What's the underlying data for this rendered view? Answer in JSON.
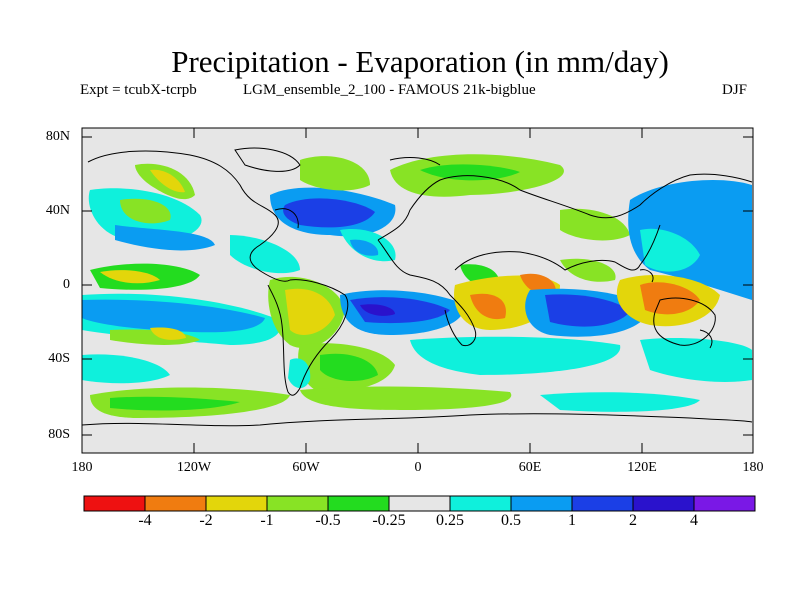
{
  "title": "Precipitation - Evaporation (in mm/day)",
  "experiment": "Expt = tcubX-tcrpb",
  "ensemble": "LGM_ensemble_2_100 - FAMOUS 21k-bigblue",
  "season": "DJF",
  "lat_ticks": [
    "80N",
    "40N",
    "0",
    "40S",
    "80S"
  ],
  "lon_ticks": [
    "180",
    "120W",
    "60W",
    "0",
    "60E",
    "120E",
    "180"
  ],
  "colorbar": {
    "colors": [
      "#ee1111",
      "#f07c10",
      "#e3d60b",
      "#88e325",
      "#23dc1f",
      "#e6e6e6",
      "#0ff0dc",
      "#0a9cf2",
      "#1b3fe6",
      "#2a12cc",
      "#7a18e6"
    ],
    "labels": [
      "-4",
      "-2",
      "-1",
      "-0.5",
      "-0.25",
      "0.25",
      "0.5",
      "1",
      "2",
      "4"
    ]
  }
}
